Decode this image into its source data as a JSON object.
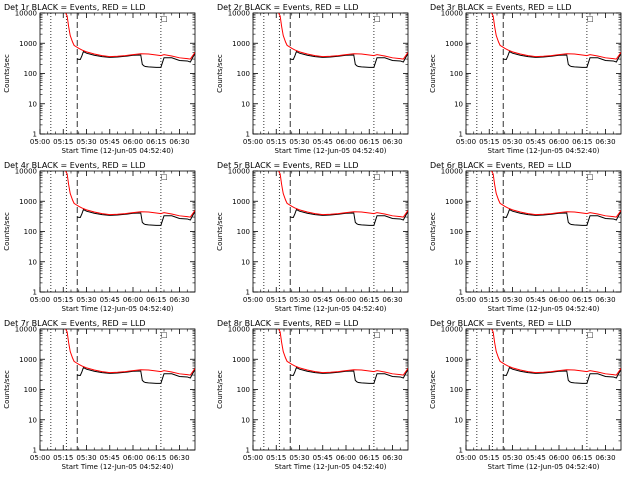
{
  "figure": {
    "background": "#ffffff",
    "axis_color": "#000000",
    "events_color": "#000000",
    "lld_color": "#ff0000"
  },
  "chart_data": [
    {
      "type": "line",
      "title": "Det 1r BLACK = Events, RED = LLD"
    },
    {
      "type": "line",
      "title": "Det 2r BLACK = Events, RED = LLD"
    },
    {
      "type": "line",
      "title": "Det 3r BLACK = Events, RED = LLD"
    },
    {
      "type": "line",
      "title": "Det 4r BLACK = Events, RED = LLD"
    },
    {
      "type": "line",
      "title": "Det 5r BLACK = Events, RED = LLD"
    },
    {
      "type": "line",
      "title": "Det 6r BLACK = Events, RED = LLD"
    },
    {
      "type": "line",
      "title": "Det 7r BLACK = Events, RED = LLD"
    },
    {
      "type": "line",
      "title": "Det 8r BLACK = Events, RED = LLD"
    },
    {
      "type": "line",
      "title": "Det 9r BLACK = Events, RED = LLD"
    }
  ],
  "shared": {
    "ylabel": "Counts/sec",
    "xlabel": "Start Time (12-Jun-05 04:52:40)",
    "yscale": "log",
    "ylim": [
      1,
      10000
    ],
    "yticks": [
      1,
      10,
      100,
      1000,
      10000
    ],
    "ytick_labels": [
      "1",
      "10",
      "100",
      "1000",
      "10000"
    ],
    "xlim_minutes": [
      0,
      100
    ],
    "xticks_minutes": [
      0,
      15,
      30,
      45,
      60,
      75,
      90
    ],
    "xtick_labels": [
      "05:00",
      "05:15",
      "05:30",
      "05:45",
      "06:00",
      "06:15",
      "06:30"
    ],
    "dotted_lines_minutes": [
      7,
      17,
      78
    ],
    "dashed_line_minutes": 24,
    "marker_label": "□",
    "marker_minutes": 80,
    "events": {
      "x": [
        24,
        26,
        27,
        28,
        30,
        35,
        40,
        45,
        50,
        55,
        60,
        65,
        66,
        67,
        68,
        70,
        75,
        78,
        80,
        85,
        90,
        95,
        97,
        100
      ],
      "y": [
        300,
        290,
        380,
        530,
        470,
        400,
        360,
        340,
        350,
        370,
        400,
        410,
        200,
        180,
        170,
        165,
        160,
        160,
        330,
        330,
        270,
        260,
        240,
        470
      ]
    },
    "lld": {
      "x": [
        16.5,
        17.5,
        18.5,
        19.5,
        21,
        22,
        23.5,
        25,
        27,
        30,
        35,
        40,
        45,
        50,
        55,
        60,
        65,
        70,
        75,
        78,
        80,
        85,
        90,
        95,
        97,
        100
      ],
      "y": [
        10000,
        8000,
        3500,
        1800,
        1100,
        850,
        760,
        680,
        600,
        520,
        440,
        390,
        360,
        370,
        390,
        420,
        450,
        440,
        410,
        390,
        420,
        380,
        330,
        310,
        300,
        500
      ]
    }
  }
}
